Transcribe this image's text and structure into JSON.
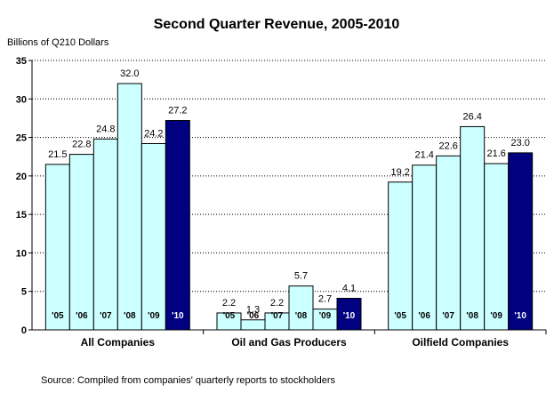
{
  "chart_data": {
    "type": "bar",
    "title": "Second Quarter Revenue, 2005-2010",
    "ylabel": "Billions of Q210 Dollars",
    "source": "Source: Compiled from companies' quarterly reports to stockholders",
    "ylim": [
      0,
      35
    ],
    "yticks": [
      "0",
      "5",
      "10",
      "15",
      "20",
      "25",
      "30",
      "35"
    ],
    "grid": true,
    "legend": "none",
    "colors": {
      "light": "#CCFFFF",
      "highlight": "#000080",
      "outline": "#000000"
    },
    "groups": [
      {
        "name": "All Companies",
        "bars": [
          {
            "year": "'05",
            "value": 21.5,
            "label": "21.5"
          },
          {
            "year": "'06",
            "value": 22.8,
            "label": "22.8"
          },
          {
            "year": "'07",
            "value": 24.8,
            "label": "24.8"
          },
          {
            "year": "'08",
            "value": 32.0,
            "label": "32.0"
          },
          {
            "year": "'09",
            "value": 24.2,
            "label": "24.2"
          },
          {
            "year": "'10",
            "value": 27.2,
            "label": "27.2",
            "highlight": true
          }
        ]
      },
      {
        "name": "Oil and Gas Producers",
        "bars": [
          {
            "year": "'05",
            "value": 2.2,
            "label": "2.2"
          },
          {
            "year": "'06",
            "value": 1.3,
            "label": "1.3"
          },
          {
            "year": "'07",
            "value": 2.2,
            "label": "2.2"
          },
          {
            "year": "'08",
            "value": 5.7,
            "label": "5.7"
          },
          {
            "year": "'09",
            "value": 2.7,
            "label": "2.7"
          },
          {
            "year": "'10",
            "value": 4.1,
            "label": "4.1",
            "highlight": true
          }
        ]
      },
      {
        "name": "Oilfield Companies",
        "bars": [
          {
            "year": "'05",
            "value": 19.2,
            "label": "19.2"
          },
          {
            "year": "'06",
            "value": 21.4,
            "label": "21.4"
          },
          {
            "year": "'07",
            "value": 22.6,
            "label": "22.6"
          },
          {
            "year": "'08",
            "value": 26.4,
            "label": "26.4"
          },
          {
            "year": "'09",
            "value": 21.6,
            "label": "21.6"
          },
          {
            "year": "'10",
            "value": 23.0,
            "label": "23.0",
            "highlight": true
          }
        ]
      }
    ]
  }
}
